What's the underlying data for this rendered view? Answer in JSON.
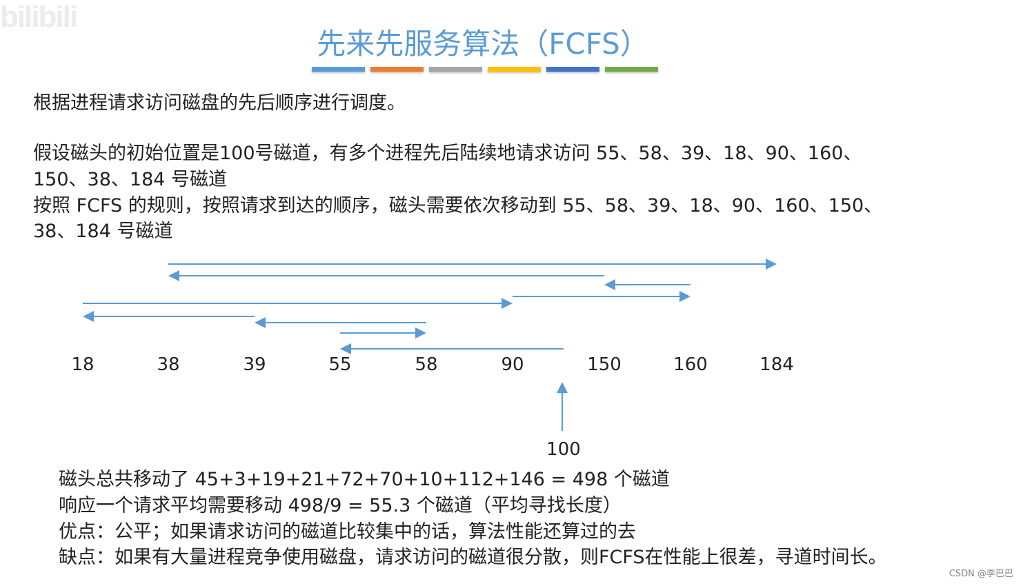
{
  "watermark": "bilibili",
  "title": "先来先服务算法（FCFS）",
  "title_bar_colors": [
    "#5b9bd5",
    "#ed7d31",
    "#a5a5a5",
    "#ffc000",
    "#4472c4",
    "#70ad47"
  ],
  "paragraphs": [
    "根据进程请求访问磁盘的先后顺序进行调度。",
    "假设磁头的初始位置是100号磁道，有多个进程先后陆续地请求访问 55、58、39、18、90、160、",
    "150、38、184 号磁道",
    "按照 FCFS 的规则，按照请求到达的顺序，磁头需要依次移动到 55、58、39、18、90、160、150、",
    "38、184 号磁道"
  ],
  "diagram": {
    "ticks": [
      "18",
      "38",
      "39",
      "55",
      "58",
      "90",
      "150",
      "160",
      "184"
    ],
    "start_label": "100",
    "sequence": [
      100,
      55,
      58,
      39,
      18,
      90,
      160,
      150,
      38,
      184
    ],
    "arrow_color": "#5b9bd5"
  },
  "summary": [
    "磁头总共移动了  45+3+19+21+72+70+10+112+146 = 498  个磁道",
    "响应一个请求平均需要移动 498/9 = 55.3 个磁道（平均寻找长度）",
    "优点：公平；如果请求访问的磁道比较集中的话，算法性能还算过的去",
    "缺点：如果有大量进程竞争使用磁盘，请求访问的磁道很分散，则FCFS在性能上很差，寻道时间长。"
  ],
  "credit": "CSDN @李巴巴"
}
